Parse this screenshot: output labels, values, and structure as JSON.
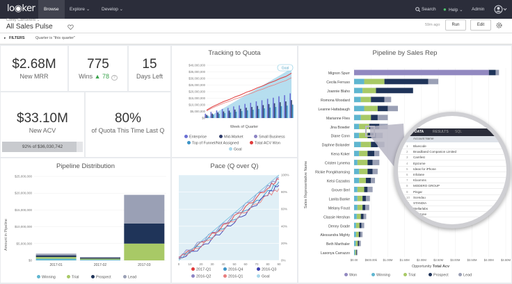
{
  "topbar": {
    "logo": "lo◉ker",
    "nav": [
      "Browse",
      "Explore ⌄",
      "Develop ⌄"
    ],
    "search": "Search",
    "help": "Help ⌄",
    "admin": "Admin"
  },
  "header": {
    "breadcrumb": "Corey Carruthers ⌄",
    "title": "All Sales Pulse",
    "updated": "59m ago",
    "run": "Run",
    "edit": "Edit"
  },
  "filters": {
    "label": "FILTERS",
    "summary": "Quarter is \"this quarter\""
  },
  "kpis": {
    "mrr_value": "$2.68M",
    "mrr_label": "New MRR",
    "wins_value": "775",
    "wins_label": "Wins",
    "wins_delta": "▲ 78",
    "days_value": "15",
    "days_label": "Days Left",
    "acv_value": "$33.10M",
    "acv_label": "New ACV",
    "acv_sub": "92% of $36,030,742",
    "quota_value": "80%",
    "quota_label": "of Quota This Time Last Q"
  },
  "colors": {
    "enterprise": "#6a6fd4",
    "midmarket": "#2e3c6b",
    "smallbiz": "#8c84c4",
    "topfunnel": "#3d94c7",
    "totalwon": "#e03a3a",
    "goal": "#a9d8ec",
    "won": "#9188c0",
    "winning": "#5fb6d0",
    "trial": "#a8c966",
    "prospect": "#1f3459",
    "lead": "#9aa0b5"
  },
  "tracking": {
    "title": "Tracking to Quota",
    "xlabel": "Week of Quarter",
    "badge": "Goal",
    "yticks": [
      "$40,000,000",
      "$35,000,000",
      "$30,000,000",
      "$25,000,000",
      "$20,000,000",
      "$15,000,000",
      "$10,000,000",
      "$5,000,000",
      "$0"
    ],
    "legend": [
      "Enterprise",
      "Mid-Market",
      "Small Business",
      "Top of Funnel/Not Assigned",
      "Total ACV Won",
      "Goal"
    ]
  },
  "pipeline_dist": {
    "title": "Pipeline Distribution",
    "ylabel": "Amount in Pipeline",
    "yticks": [
      "$25,000,000",
      "$20,000,000",
      "$15,000,000",
      "$10,000,000",
      "$5,000,000",
      "$0"
    ],
    "legend": [
      "Winning",
      "Trial",
      "Prospect",
      "Lead"
    ]
  },
  "pace": {
    "title": "Pace (Q over Q)",
    "yticks": [
      "100%",
      "80%",
      "60%",
      "40%",
      "20%",
      "0%"
    ],
    "xticks": [
      "0",
      "10",
      "20",
      "30",
      "40",
      "50",
      "60",
      "70",
      "80",
      "90"
    ],
    "legend": [
      "2017-Q1",
      "2016-Q4",
      "2016-Q3",
      "2016-Q2",
      "2016-Q1",
      "Goal"
    ]
  },
  "rep": {
    "title": "Pipeline by Sales Rep",
    "ylabel": "Sales Representative Name",
    "xlabel": "Opportunity Total Acv",
    "xlabel_plain": "Opportunity",
    "xlabel_bold": "Total Acv",
    "xticks": [
      "$0.00",
      "$500.00k",
      "$1.00M",
      "$1.50M",
      "$2.00M",
      "$2.50M",
      "$3.00M",
      "$3.50M",
      "$4.00M",
      "$4.50M"
    ],
    "legend": [
      "Won",
      "Winning",
      "Trial",
      "Prospect",
      "Lead"
    ],
    "names": [
      "Mignon Spurr",
      "Cecila Ferruso",
      "Joannie Blaho",
      "Romona Woodard",
      "Leanne Hattabaugh",
      "Marianne Flies",
      "Jina Bowder",
      "Diane Conn",
      "Daphne Bolander",
      "Kena Koker",
      "Cristen Lynema",
      "Rickie Pongkhamsing",
      "Kelsi Cazados",
      "Grover Berl",
      "Lanita Banke",
      "Melany Foust",
      "Classie Hershan",
      "Denny Grade",
      "Alessandra Mighty",
      "Beth Marthaler",
      "Lasonya Carrazzo"
    ]
  },
  "magnifier": {
    "tabs": [
      "DATA",
      "RESULTS",
      "SQL"
    ],
    "header": "Account Name",
    "rows": [
      "Bluecode",
      "Broadband Companion Limited",
      "Camfest",
      "Epizome",
      "Ideas for iPhone",
      "Infolane",
      "Kloomms",
      "MODERO GROUP",
      "Pingar",
      "Scenduu",
      "STANDIA",
      "Stellarlabs",
      "Sunstone"
    ]
  },
  "chart_data": [
    {
      "type": "line",
      "title": "Tracking to Quota",
      "xlabel": "Week of Quarter",
      "ylim": [
        0,
        40000000
      ],
      "series": [
        {
          "name": "Total ACV Won",
          "values": [
            6000000,
            8500000,
            10500000,
            12500000,
            14000000,
            16000000,
            17500000,
            19500000,
            21000000,
            23000000,
            24500000,
            26500000,
            28000000,
            30000000,
            31500000,
            34000000
          ]
        },
        {
          "name": "Goal",
          "values": [
            0,
            2500000,
            5000000,
            7500000,
            10000000,
            12500000,
            15000000,
            17500000,
            20000000,
            22500000,
            25000000,
            27500000,
            30000000,
            32500000,
            35000000,
            37500000
          ]
        }
      ]
    },
    {
      "type": "bar",
      "title": "Pipeline Distribution",
      "ylabel": "Amount in Pipeline",
      "categories": [
        "2017-01",
        "2017-02",
        "2017-03"
      ],
      "ylim": [
        0,
        25000000
      ],
      "series": [
        {
          "name": "Winning",
          "values": [
            500000,
            200000,
            0
          ]
        },
        {
          "name": "Trial",
          "values": [
            500000,
            300000,
            5000000
          ]
        },
        {
          "name": "Prospect",
          "values": [
            500000,
            300000,
            6000000
          ]
        },
        {
          "name": "Lead",
          "values": [
            500000,
            200000,
            8500000
          ]
        }
      ]
    },
    {
      "type": "line",
      "title": "Pace (Q over Q)",
      "ylim": [
        0,
        100
      ],
      "xlim": [
        0,
        90
      ],
      "series": [
        {
          "name": "2017-Q1",
          "values": [
            [
              0,
              2
            ],
            [
              20,
              20
            ],
            [
              40,
              40
            ],
            [
              60,
              62
            ],
            [
              80,
              85
            ],
            [
              90,
              95
            ]
          ]
        },
        {
          "name": "2016-Q4",
          "values": [
            [
              0,
              3
            ],
            [
              20,
              18
            ],
            [
              40,
              38
            ],
            [
              60,
              58
            ],
            [
              80,
              80
            ],
            [
              90,
              92
            ]
          ]
        },
        {
          "name": "2016-Q3",
          "values": [
            [
              0,
              2
            ],
            [
              20,
              15
            ],
            [
              40,
              35
            ],
            [
              60,
              55
            ],
            [
              80,
              78
            ],
            [
              90,
              88
            ]
          ]
        },
        {
          "name": "2016-Q2",
          "values": [
            [
              0,
              4
            ],
            [
              20,
              22
            ],
            [
              40,
              42
            ],
            [
              60,
              65
            ],
            [
              80,
              87
            ],
            [
              90,
              97
            ]
          ]
        },
        {
          "name": "2016-Q1",
          "values": [
            [
              0,
              3
            ],
            [
              20,
              17
            ],
            [
              40,
              37
            ],
            [
              60,
              57
            ],
            [
              80,
              76
            ],
            [
              90,
              84
            ]
          ]
        },
        {
          "name": "Goal",
          "values": [
            [
              0,
              0
            ],
            [
              90,
              100
            ]
          ]
        }
      ]
    },
    {
      "type": "bar",
      "title": "Pipeline by Sales Rep",
      "xlabel": "Opportunity Total Acv",
      "xlim": [
        0,
        4500000
      ],
      "categories": [
        "Mignon Spurr",
        "Cecila Ferruso",
        "Joannie Blaho",
        "Romona Woodard",
        "Leanne Hattabaugh",
        "Marianne Flies",
        "Jina Bowder",
        "Diane Conn",
        "Daphne Bolander",
        "Kena Koker",
        "Cristen Lynema",
        "Rickie Pongkhamsing",
        "Kelsi Cazados",
        "Grover Berl",
        "Lanita Banke",
        "Melany Foust",
        "Classie Hershan",
        "Denny Grade",
        "Alessandra Mighty",
        "Beth Marthaler",
        "Lasonya Carrazzo"
      ],
      "series": [
        {
          "name": "Won",
          "values": [
            4000000,
            0,
            0,
            0,
            0,
            0,
            0,
            0,
            0,
            0,
            0,
            0,
            0,
            0,
            0,
            0,
            0,
            0,
            0,
            0,
            0
          ]
        },
        {
          "name": "Winning",
          "values": [
            0,
            300000,
            250000,
            200000,
            300000,
            200000,
            150000,
            150000,
            200000,
            150000,
            100000,
            150000,
            150000,
            100000,
            100000,
            100000,
            80000,
            60000,
            60000,
            50000,
            30000
          ]
        },
        {
          "name": "Trial",
          "values": [
            0,
            600000,
            400000,
            300000,
            400000,
            300000,
            300000,
            250000,
            300000,
            250000,
            300000,
            250000,
            200000,
            200000,
            150000,
            150000,
            120000,
            100000,
            80000,
            60000,
            30000
          ]
        },
        {
          "name": "Prospect",
          "values": [
            200000,
            1300000,
            1100000,
            400000,
            300000,
            200000,
            300000,
            250000,
            200000,
            200000,
            150000,
            150000,
            150000,
            100000,
            100000,
            80000,
            80000,
            60000,
            50000,
            40000,
            20000
          ]
        },
        {
          "name": "Lead",
          "values": [
            100000,
            300000,
            0,
            200000,
            300000,
            300000,
            250000,
            200000,
            200000,
            150000,
            200000,
            150000,
            120000,
            150000,
            120000,
            120000,
            80000,
            80000,
            60000,
            50000,
            20000
          ]
        }
      ]
    }
  ]
}
